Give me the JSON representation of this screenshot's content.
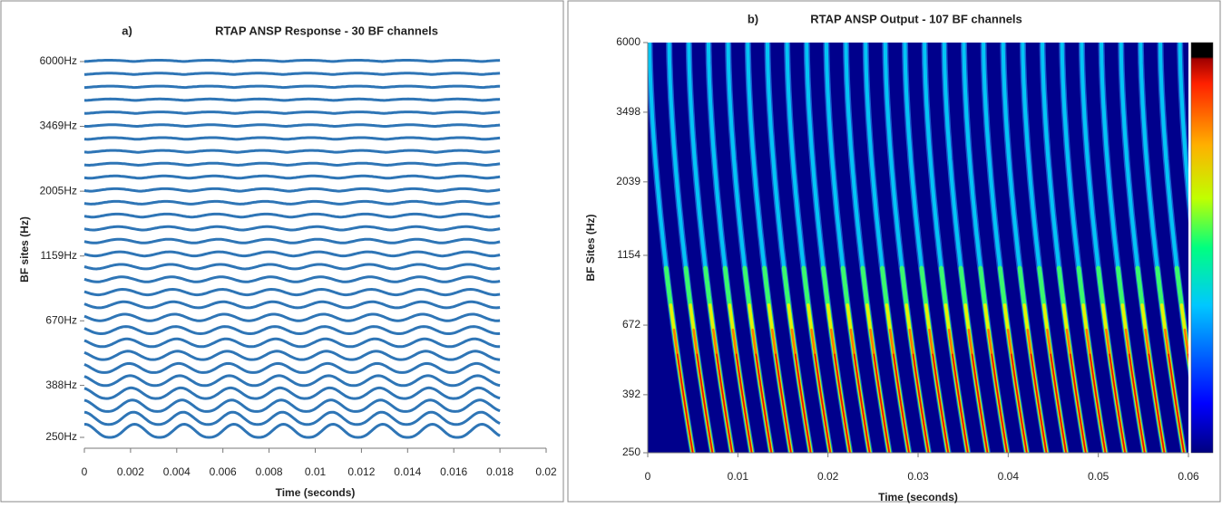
{
  "chart_data": [
    {
      "type": "waterfall",
      "panel": "a)",
      "title": "RTAP ANSP Response - 30 BF channels",
      "xlabel": "Time (seconds)",
      "ylabel": "BF sites (Hz)",
      "color": "#2e75b6",
      "xlim": [
        0,
        0.02
      ],
      "xticks": [
        0,
        0.002,
        0.004,
        0.006,
        0.008,
        0.01,
        0.012,
        0.014,
        0.016,
        0.018,
        0.02
      ],
      "ylim": [
        250,
        6000
      ],
      "yscale": "log",
      "yticks": [
        {
          "value": 250,
          "label": "250Hz"
        },
        {
          "value": 388,
          "label": "388Hz"
        },
        {
          "value": 670,
          "label": "670Hz"
        },
        {
          "value": 1159,
          "label": "1159Hz"
        },
        {
          "value": 2005,
          "label": "2005Hz"
        },
        {
          "value": 3469,
          "label": "3469Hz"
        },
        {
          "value": 6000,
          "label": "6000Hz"
        }
      ]
    },
    {
      "type": "heatmap",
      "panel": "b)",
      "title": "RTAP ANSP Output - 107 BF channels",
      "xlabel": "Time (seconds)",
      "ylabel": "BF Sites (Hz)",
      "xlim": [
        0,
        0.06
      ],
      "xticks": [
        0,
        0.01,
        0.02,
        0.03,
        0.04,
        0.05,
        0.06
      ],
      "ylim": [
        250,
        6000
      ],
      "yscale": "log",
      "yticks": [
        250,
        392,
        672,
        1154,
        2039,
        3498,
        6000
      ]
    }
  ]
}
